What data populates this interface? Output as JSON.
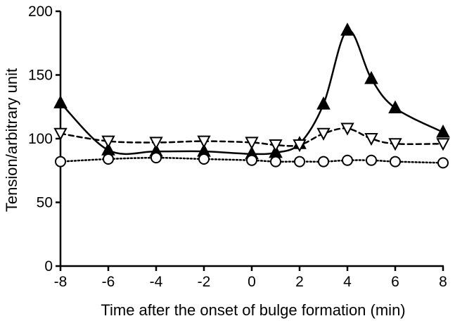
{
  "chart_data": {
    "type": "line",
    "title": "",
    "xlabel": "Time after the onset of bulge formation (min)",
    "ylabel": "Tension/arbitrary unit",
    "xlim": [
      -8,
      8
    ],
    "ylim": [
      0,
      200
    ],
    "xticks": [
      -8,
      -6,
      -4,
      -2,
      0,
      2,
      4,
      6,
      8
    ],
    "yticks": [
      0,
      50,
      100,
      150,
      200
    ],
    "grid": false,
    "legend": "none",
    "series": [
      {
        "marker": "filled-triangle",
        "line_style": "solid",
        "x": [
          -8,
          -6,
          -4,
          -2,
          0,
          1,
          2,
          3,
          4,
          5,
          6,
          8
        ],
        "y": [
          128,
          91,
          90,
          90,
          88,
          89,
          96,
          127,
          185,
          147,
          124,
          105
        ]
      },
      {
        "marker": "open-inverted-triangle",
        "line_style": "dashed",
        "x": [
          -8,
          -6,
          -4,
          -2,
          0,
          1,
          2,
          3,
          4,
          5,
          6,
          8
        ],
        "y": [
          104,
          98,
          97,
          98,
          97,
          95,
          95,
          104,
          108,
          100,
          96,
          96
        ]
      },
      {
        "marker": "open-circle",
        "line_style": "dotted",
        "x": [
          -8,
          -6,
          -4,
          -2,
          0,
          1,
          2,
          3,
          4,
          5,
          6,
          8
        ],
        "y": [
          82,
          84,
          85,
          84,
          83,
          82,
          82,
          82,
          83,
          83,
          82,
          81
        ]
      }
    ]
  }
}
